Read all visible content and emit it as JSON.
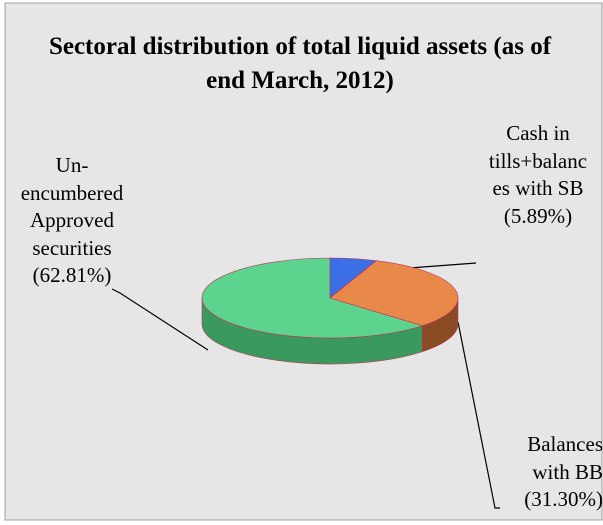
{
  "chart_data": {
    "type": "pie",
    "title": "Sectoral distribution of total liquid assets  (as of end March, 2012)",
    "categories": [
      "Cash in tills+balances with SB",
      "Balances with BB",
      "Un-encumbered Approved securities"
    ],
    "values": [
      5.89,
      31.3,
      62.81
    ],
    "value_labels": [
      "(5.89%)",
      "(31.30%)",
      "(62.81%)"
    ],
    "colors": [
      "#3b6fe6",
      "#e8894a",
      "#5cd48e"
    ],
    "side_colors": [
      "#2a4fa6",
      "#8a4a22",
      "#3a9a5e"
    ]
  }
}
